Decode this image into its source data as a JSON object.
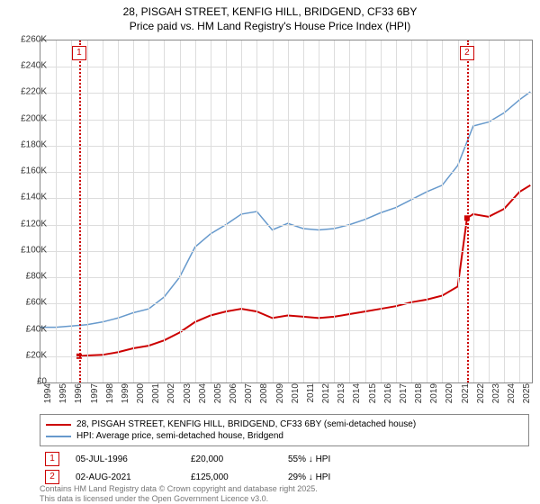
{
  "title_line1": "28, PISGAH STREET, KENFIG HILL, BRIDGEND, CF33 6BY",
  "title_line2": "Price paid vs. HM Land Registry's House Price Index (HPI)",
  "chart": {
    "type": "line",
    "x_min": 1994,
    "x_max": 2025.8,
    "y_min": 0,
    "y_max": 260000,
    "y_ticks": [
      0,
      20000,
      40000,
      60000,
      80000,
      100000,
      120000,
      140000,
      160000,
      180000,
      200000,
      220000,
      240000,
      260000
    ],
    "y_tick_labels": [
      "£0",
      "£20K",
      "£40K",
      "£60K",
      "£80K",
      "£100K",
      "£120K",
      "£140K",
      "£160K",
      "£180K",
      "£200K",
      "£220K",
      "£240K",
      "£260K"
    ],
    "x_ticks": [
      1994,
      1995,
      1996,
      1997,
      1998,
      1999,
      2000,
      2001,
      2002,
      2003,
      2004,
      2005,
      2006,
      2007,
      2008,
      2009,
      2010,
      2011,
      2012,
      2013,
      2014,
      2015,
      2016,
      2017,
      2018,
      2019,
      2020,
      2021,
      2022,
      2023,
      2024,
      2025
    ],
    "grid_color": "#dddddd",
    "background_color": "#ffffff",
    "border_color": "#888888",
    "series": [
      {
        "name": "price_paid",
        "label": "28, PISGAH STREET, KENFIG HILL, BRIDGEND, CF33 6BY (semi-detached house)",
        "color": "#cc0000",
        "width": 2,
        "points": [
          [
            1996.5,
            20000
          ],
          [
            1997,
            20500
          ],
          [
            1998,
            21000
          ],
          [
            1999,
            23000
          ],
          [
            2000,
            26000
          ],
          [
            2001,
            28000
          ],
          [
            2002,
            32000
          ],
          [
            2003,
            38000
          ],
          [
            2004,
            46000
          ],
          [
            2005,
            51000
          ],
          [
            2006,
            54000
          ],
          [
            2007,
            56000
          ],
          [
            2008,
            54000
          ],
          [
            2009,
            49000
          ],
          [
            2010,
            51000
          ],
          [
            2011,
            50000
          ],
          [
            2012,
            49000
          ],
          [
            2013,
            50000
          ],
          [
            2014,
            52000
          ],
          [
            2015,
            54000
          ],
          [
            2016,
            56000
          ],
          [
            2017,
            58000
          ],
          [
            2018,
            61000
          ],
          [
            2019,
            63000
          ],
          [
            2020,
            66000
          ],
          [
            2021,
            73000
          ],
          [
            2021.6,
            125000
          ],
          [
            2022,
            128000
          ],
          [
            2023,
            126000
          ],
          [
            2024,
            132000
          ],
          [
            2025,
            145000
          ],
          [
            2025.7,
            150000
          ]
        ]
      },
      {
        "name": "hpi",
        "label": "HPI: Average price, semi-detached house, Bridgend",
        "color": "#6699cc",
        "width": 1.5,
        "points": [
          [
            1994,
            42000
          ],
          [
            1995,
            42000
          ],
          [
            1996,
            43000
          ],
          [
            1997,
            44000
          ],
          [
            1998,
            46000
          ],
          [
            1999,
            49000
          ],
          [
            2000,
            53000
          ],
          [
            2001,
            56000
          ],
          [
            2002,
            65000
          ],
          [
            2003,
            80000
          ],
          [
            2004,
            103000
          ],
          [
            2005,
            113000
          ],
          [
            2006,
            120000
          ],
          [
            2007,
            128000
          ],
          [
            2008,
            130000
          ],
          [
            2009,
            116000
          ],
          [
            2010,
            121000
          ],
          [
            2011,
            117000
          ],
          [
            2012,
            116000
          ],
          [
            2013,
            117000
          ],
          [
            2014,
            120000
          ],
          [
            2015,
            124000
          ],
          [
            2016,
            129000
          ],
          [
            2017,
            133000
          ],
          [
            2018,
            139000
          ],
          [
            2019,
            145000
          ],
          [
            2020,
            150000
          ],
          [
            2021,
            165000
          ],
          [
            2022,
            195000
          ],
          [
            2023,
            198000
          ],
          [
            2024,
            205000
          ],
          [
            2025,
            215000
          ],
          [
            2025.7,
            221000
          ]
        ]
      }
    ],
    "sale_markers": [
      {
        "id": "1",
        "x": 1996.5,
        "y": 20000,
        "color": "#cc0000"
      },
      {
        "id": "2",
        "x": 2021.6,
        "y": 125000,
        "color": "#cc0000"
      }
    ]
  },
  "legend": {
    "items": [
      {
        "color": "#cc0000",
        "label": "28, PISGAH STREET, KENFIG HILL, BRIDGEND, CF33 6BY (semi-detached house)"
      },
      {
        "color": "#6699cc",
        "label": "HPI: Average price, semi-detached house, Bridgend"
      }
    ]
  },
  "sales": [
    {
      "id": "1",
      "color": "#cc0000",
      "date": "05-JUL-1996",
      "price": "£20,000",
      "delta": "55% ↓ HPI"
    },
    {
      "id": "2",
      "color": "#cc0000",
      "date": "02-AUG-2021",
      "price": "£125,000",
      "delta": "29% ↓ HPI"
    }
  ],
  "footer_line1": "Contains HM Land Registry data © Crown copyright and database right 2025.",
  "footer_line2": "This data is licensed under the Open Government Licence v3.0."
}
